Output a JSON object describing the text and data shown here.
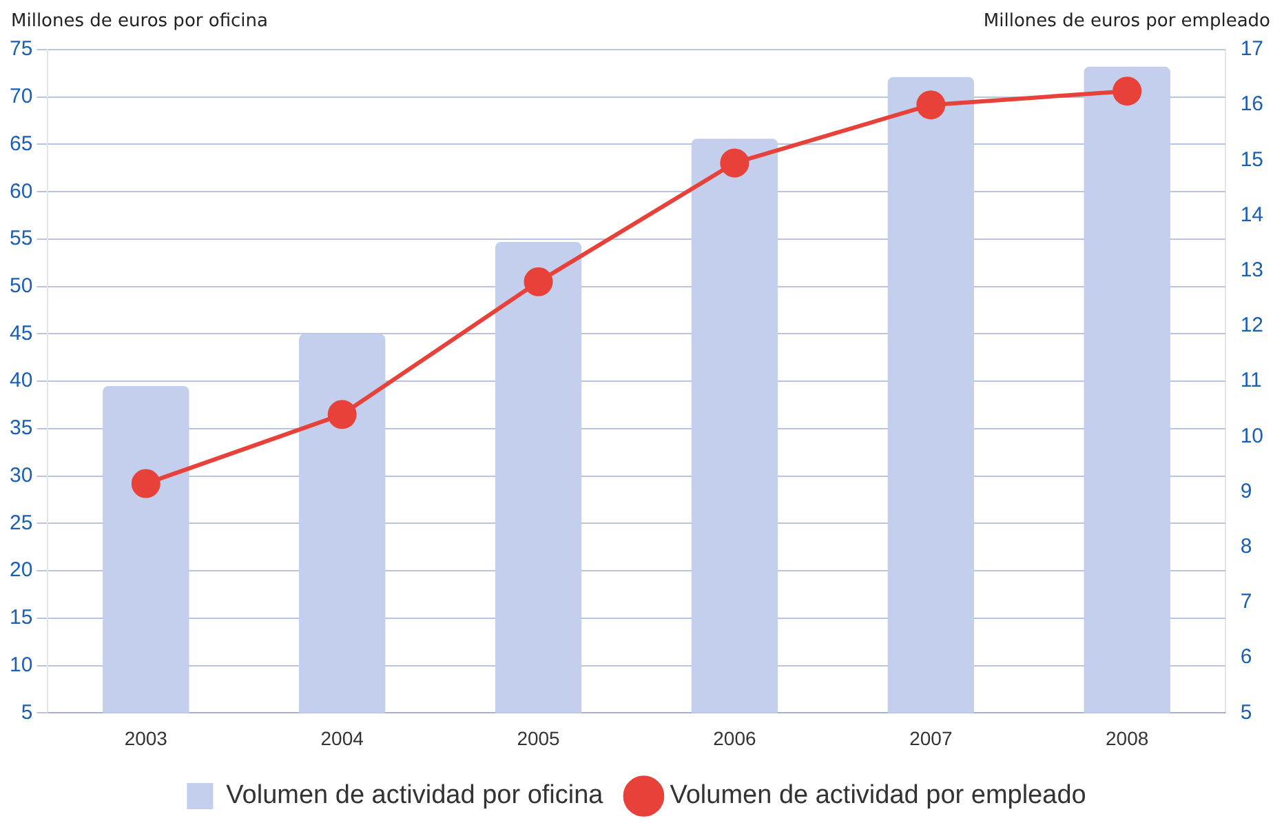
{
  "chart_data": {
    "type": "bar",
    "ylabel": "Millones de euros por oficina",
    "y2label": "Millones de euros por empleado",
    "categories": [
      "2003",
      "2004",
      "2005",
      "2006",
      "2007",
      "2008"
    ],
    "series": [
      {
        "name": "Volumen de actividad por oficina",
        "color": "#c3cfec",
        "values": [
          39.5,
          45,
          54.7,
          65.6,
          72.1,
          73.2
        ]
      },
      {
        "name": "Volumen de actividad por empleado",
        "type": "line",
        "axis": "y2",
        "color": "#e8413a",
        "values": [
          9.15,
          10.4,
          12.8,
          14.95,
          16.0,
          16.25
        ]
      }
    ],
    "ylim": [
      5,
      75
    ],
    "yticks": [
      5,
      10,
      15,
      20,
      25,
      30,
      35,
      40,
      45,
      50,
      55,
      60,
      65,
      70,
      75
    ],
    "y2lim": [
      5,
      17
    ],
    "y2ticks": [
      5,
      6,
      7,
      8,
      9,
      10,
      11,
      12,
      13,
      14,
      15,
      16,
      17
    ],
    "grid": "y",
    "legend": "bottom",
    "marker": "circle",
    "line_style": "solid"
  }
}
